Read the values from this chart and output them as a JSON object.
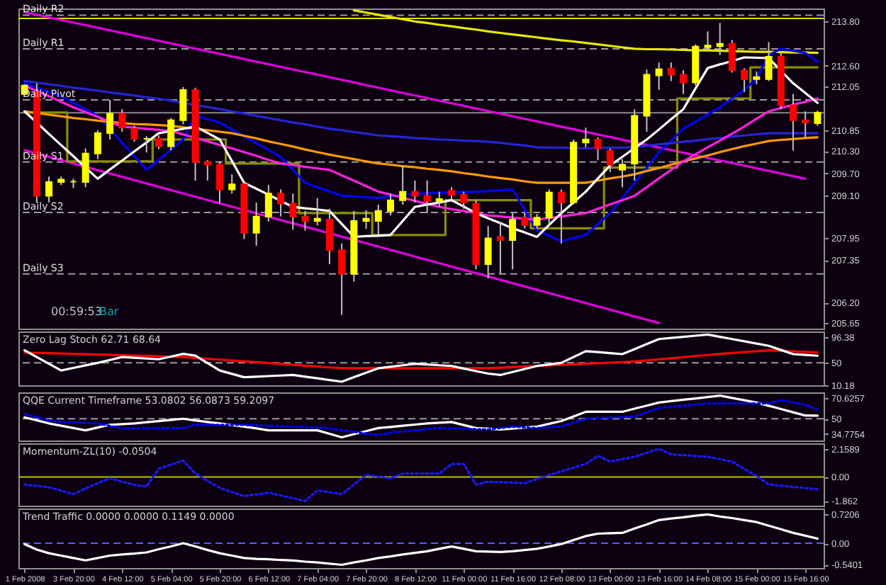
{
  "chart_data": [
    {
      "type": "candlestick",
      "tick_labels": "y",
      "categories": [
        "1 Feb 2008",
        null,
        null,
        null,
        "3 Feb 20:00",
        null,
        null,
        null,
        "4 Feb 12:00",
        null,
        null,
        null,
        "5 Feb 04:00",
        null,
        null,
        null,
        "5 Feb 20:00",
        null,
        null,
        null,
        "6 Feb 12:00",
        null,
        null,
        null,
        "7 Feb 04:00",
        null,
        null,
        null,
        "7 Feb 20:00",
        null,
        null,
        null,
        "8 Feb 12:00",
        null,
        null,
        null,
        "11 Feb 00:00",
        null,
        null,
        null,
        "11 Feb 16:00",
        null,
        null,
        null,
        "12 Feb 08:00",
        null,
        null,
        null,
        "13 Feb 00:00",
        null,
        null,
        null,
        "13 Feb 16:00",
        null,
        null,
        null,
        "14 Feb 08:00",
        null,
        null,
        null,
        "15 Feb 00:00",
        null,
        null,
        null,
        "15 Feb 16:00",
        null
      ],
      "ohlc": [
        [
          211.84,
          212.1,
          211.8,
          212.07
        ],
        [
          211.89,
          212.13,
          208.91,
          209.09
        ],
        [
          209.09,
          209.61,
          208.91,
          209.46
        ],
        [
          209.46,
          209.61,
          209.38,
          209.53
        ],
        [
          209.47,
          209.55,
          209.3,
          209.47
        ],
        [
          209.46,
          210.37,
          209.32,
          210.23
        ],
        [
          210.23,
          210.86,
          210.08,
          210.78
        ],
        [
          210.78,
          211.68,
          210.61,
          211.31
        ],
        [
          211.31,
          211.43,
          210.82,
          210.93
        ],
        [
          210.9,
          210.98,
          210.55,
          210.63
        ],
        [
          210.63,
          210.7,
          210.26,
          210.63
        ],
        [
          210.64,
          210.72,
          210.35,
          210.43
        ],
        [
          210.43,
          211.19,
          210.31,
          211.13
        ],
        [
          211.13,
          212.03,
          211.02,
          211.95
        ],
        [
          211.95,
          212.01,
          209.5,
          210.0
        ],
        [
          210.0,
          210.05,
          209.5,
          209.93
        ],
        [
          209.93,
          210.02,
          208.88,
          209.26
        ],
        [
          209.26,
          209.67,
          209.15,
          209.4
        ],
        [
          209.4,
          209.5,
          207.92,
          208.09
        ],
        [
          208.09,
          208.91,
          207.74,
          208.53
        ],
        [
          208.53,
          209.38,
          208.39,
          209.15
        ],
        [
          209.15,
          209.26,
          208.53,
          208.88
        ],
        [
          208.88,
          209.15,
          208.17,
          208.53
        ],
        [
          208.53,
          208.68,
          208.15,
          208.41
        ],
        [
          208.41,
          209.03,
          208.29,
          208.47
        ],
        [
          208.44,
          208.74,
          207.24,
          207.62
        ],
        [
          207.62,
          207.8,
          205.87,
          206.98
        ],
        [
          206.98,
          208.68,
          206.77,
          208.41
        ],
        [
          208.41,
          208.7,
          208.2,
          208.47
        ],
        [
          208.41,
          208.85,
          208.03,
          208.68
        ],
        [
          208.68,
          209.15,
          208.56,
          208.97
        ],
        [
          208.97,
          209.91,
          208.85,
          209.2
        ],
        [
          209.2,
          209.5,
          208.91,
          209.09
        ],
        [
          209.09,
          209.5,
          208.62,
          208.95
        ],
        [
          208.95,
          209.2,
          208.8,
          209.0
        ],
        [
          209.23,
          209.32,
          209.0,
          209.11
        ],
        [
          209.11,
          209.2,
          208.74,
          208.91
        ],
        [
          208.88,
          208.97,
          207.1,
          207.24
        ],
        [
          207.24,
          208.27,
          206.86,
          207.94
        ],
        [
          207.98,
          208.38,
          206.98,
          207.89
        ],
        [
          207.89,
          208.62,
          207.1,
          208.44
        ],
        [
          208.5,
          208.62,
          208.21,
          208.3
        ],
        [
          208.3,
          208.6,
          208.2,
          208.5
        ],
        [
          208.5,
          209.26,
          208.33,
          209.18
        ],
        [
          209.18,
          209.26,
          207.8,
          208.91
        ],
        [
          208.91,
          210.61,
          208.85,
          210.53
        ],
        [
          210.53,
          210.93,
          210.4,
          210.61
        ],
        [
          210.61,
          210.67,
          210.05,
          210.37
        ],
        [
          210.31,
          210.37,
          209.73,
          209.93
        ],
        [
          209.79,
          210.08,
          209.32,
          209.93
        ],
        [
          209.96,
          211.43,
          209.5,
          211.25
        ],
        [
          211.25,
          212.5,
          210.82,
          212.36
        ],
        [
          212.34,
          212.69,
          211.95,
          212.51
        ],
        [
          212.53,
          212.69,
          212.19,
          212.36
        ],
        [
          212.36,
          212.48,
          211.84,
          212.15
        ],
        [
          212.15,
          213.18,
          212.07,
          213.12
        ],
        [
          213.1,
          213.53,
          213.06,
          213.15
        ],
        [
          213.13,
          213.76,
          212.89,
          213.2
        ],
        [
          213.2,
          213.3,
          212.42,
          212.48
        ],
        [
          212.48,
          212.54,
          211.89,
          212.24
        ],
        [
          212.24,
          212.45,
          212.1,
          212.3
        ],
        [
          212.24,
          213.24,
          212.19,
          212.85
        ],
        [
          212.85,
          212.95,
          211.43,
          211.54
        ],
        [
          211.54,
          211.84,
          210.31,
          211.13
        ],
        [
          211.13,
          211.37,
          210.67,
          211.07
        ],
        [
          211.05,
          211.39,
          210.98,
          211.33
        ]
      ],
      "series": [
        {
          "type": "line",
          "color": "#e000e0",
          "x": [
            "1 Feb 2008",
            "15 Feb 16:00"
          ],
          "values": [
            214.05,
            209.55
          ]
        },
        {
          "type": "line",
          "color": "#e000e0",
          "x": [
            "1 Feb 2008",
            "13 Feb 16:00"
          ],
          "values": [
            210.32,
            205.65
          ]
        },
        {
          "type": "line",
          "color": "#e8e800",
          "values": [
            null,
            null,
            null,
            null,
            null,
            null,
            null,
            null,
            null,
            null,
            null,
            null,
            null,
            null,
            null,
            null,
            null,
            null,
            null,
            null,
            null,
            null,
            null,
            null,
            null,
            null,
            null,
            214.1,
            214.04,
            213.98,
            213.92,
            213.86,
            213.8,
            213.76,
            213.71,
            213.67,
            213.62,
            213.58,
            213.53,
            213.49,
            213.45,
            213.41,
            213.37,
            213.33,
            213.29,
            213.26,
            213.22,
            213.18,
            213.14,
            213.1,
            213.06,
            213.05,
            213.05,
            213.04,
            213.03,
            213.02,
            213.02,
            213.01,
            213.0,
            212.99,
            212.98,
            212.98,
            212.97,
            212.96,
            212.96,
            212.95
          ]
        },
        {
          "type": "step",
          "color": "#8b8b00",
          "values": [
            211.34,
            211.34,
            211.34,
            211.34,
            210.02,
            210.02,
            210.02,
            210.02,
            210.02,
            210.02,
            210.02,
            210.61,
            210.61,
            210.61,
            210.61,
            210.61,
            210.61,
            209.96,
            209.96,
            209.96,
            209.96,
            209.96,
            209.96,
            208.62,
            208.62,
            208.62,
            208.62,
            208.62,
            208.62,
            208.03,
            208.03,
            208.03,
            208.03,
            208.03,
            208.03,
            208.97,
            208.97,
            208.97,
            208.97,
            208.97,
            208.97,
            208.97,
            208.21,
            208.21,
            208.21,
            208.21,
            208.21,
            208.21,
            209.85,
            209.85,
            209.85,
            209.85,
            209.85,
            209.85,
            211.72,
            211.72,
            211.72,
            211.72,
            211.72,
            211.72,
            212.56,
            212.56,
            212.56,
            212.56,
            212.56,
            212.56
          ]
        },
        {
          "type": "line",
          "color": "#0000ff",
          "values": [
            212.13,
            212.01,
            211.9,
            211.78,
            211.6,
            211.43,
            211.25,
            210.89,
            210.52,
            210.16,
            209.79,
            210.06,
            210.34,
            210.61,
            211.25,
            211.16,
            211.07,
            210.88,
            210.7,
            210.51,
            210.33,
            210.14,
            209.79,
            209.44,
            209.32,
            209.21,
            209.09,
            209.07,
            209.05,
            209.03,
            209.07,
            209.11,
            209.15,
            209.16,
            209.17,
            209.18,
            209.19,
            209.2,
            209.22,
            209.24,
            209.26,
            208.71,
            208.15,
            208.01,
            207.86,
            207.95,
            208.03,
            208.33,
            208.62,
            209.03,
            209.44,
            209.85,
            210.26,
            210.58,
            210.9,
            211.09,
            211.29,
            211.48,
            211.72,
            211.95,
            212.25,
            212.89,
            213.06,
            213.01,
            212.95,
            212.71
          ]
        },
        {
          "type": "line",
          "color": "#ff9900",
          "values": [
            211.37,
            211.33,
            211.28,
            211.24,
            211.19,
            211.16,
            211.12,
            211.09,
            211.05,
            211.03,
            211.02,
            211.0,
            210.98,
            210.94,
            210.9,
            210.86,
            210.82,
            210.78,
            210.71,
            210.64,
            210.56,
            210.49,
            210.42,
            210.34,
            210.27,
            210.2,
            210.14,
            210.08,
            210.02,
            209.96,
            209.93,
            209.89,
            209.86,
            209.82,
            209.79,
            209.75,
            209.7,
            209.66,
            209.61,
            209.57,
            209.53,
            209.48,
            209.44,
            209.44,
            209.44,
            209.44,
            209.44,
            209.5,
            209.56,
            209.61,
            209.67,
            209.76,
            209.84,
            209.93,
            210.02,
            210.1,
            210.18,
            210.27,
            210.35,
            210.43,
            210.5,
            210.57,
            210.6,
            210.62,
            210.65,
            210.67
          ]
        },
        {
          "type": "line",
          "color": "#2424d8",
          "values": [
            212.19,
            212.15,
            212.1,
            212.06,
            212.01,
            211.97,
            211.93,
            211.88,
            211.84,
            211.8,
            211.75,
            211.71,
            211.66,
            211.6,
            211.54,
            211.49,
            211.43,
            211.37,
            211.31,
            211.25,
            211.19,
            211.13,
            211.07,
            211.02,
            210.96,
            210.9,
            210.86,
            210.81,
            210.77,
            210.72,
            210.7,
            210.68,
            210.65,
            210.63,
            210.61,
            210.6,
            210.58,
            210.57,
            210.55,
            210.52,
            210.48,
            210.45,
            210.4,
            210.39,
            210.39,
            210.38,
            210.37,
            210.38,
            210.39,
            210.39,
            210.4,
            210.44,
            210.48,
            210.51,
            210.55,
            210.58,
            210.62,
            210.65,
            210.69,
            210.72,
            210.75,
            210.78,
            210.78,
            210.78,
            210.78,
            210.78
          ]
        },
        {
          "type": "line",
          "color": "#ff20e0",
          "values": [
            212.07,
            211.92,
            211.78,
            211.63,
            211.48,
            211.35,
            211.22,
            211.09,
            210.96,
            210.93,
            210.9,
            210.87,
            210.84,
            210.75,
            210.65,
            210.56,
            210.46,
            210.37,
            210.27,
            210.17,
            210.06,
            209.96,
            209.92,
            209.87,
            209.83,
            209.79,
            209.64,
            209.5,
            209.35,
            209.2,
            209.12,
            209.04,
            208.95,
            208.87,
            208.79,
            208.73,
            208.68,
            208.62,
            208.56,
            208.53,
            208.5,
            208.47,
            208.44,
            208.49,
            208.53,
            208.58,
            208.62,
            208.74,
            208.86,
            208.97,
            209.09,
            209.32,
            209.56,
            209.79,
            210.02,
            210.21,
            210.4,
            210.58,
            210.77,
            210.96,
            211.17,
            211.37,
            211.46,
            211.55,
            211.63,
            211.72
          ]
        },
        {
          "type": "line",
          "color": "#ffffff",
          "values": [
            211.37,
            211.07,
            210.76,
            210.46,
            210.16,
            209.85,
            209.55,
            209.8,
            210.04,
            210.29,
            210.53,
            210.78,
            210.84,
            210.9,
            210.96,
            210.79,
            210.61,
            210.03,
            209.44,
            209.28,
            209.12,
            208.95,
            208.79,
            208.75,
            208.72,
            208.68,
            208.33,
            207.98,
            208.0,
            208.01,
            208.03,
            208.41,
            208.79,
            208.85,
            208.91,
            208.97,
            208.8,
            208.62,
            208.48,
            208.35,
            208.21,
            208.1,
            207.98,
            208.3,
            208.62,
            208.91,
            209.2,
            209.56,
            209.91,
            210.14,
            210.38,
            210.61,
            210.88,
            211.16,
            211.43,
            211.99,
            212.54,
            212.64,
            212.73,
            212.83,
            212.82,
            212.81,
            212.47,
            212.13,
            211.87,
            211.6
          ]
        }
      ],
      "ylim": [
        205.5,
        214.15
      ],
      "yticks": [
        {
          "value": 213.8,
          "label": "213.80"
        },
        {
          "value": 212.6,
          "label": "212.60"
        },
        {
          "value": 212.05,
          "label": "212.05"
        },
        {
          "value": 210.85,
          "label": "210.85"
        },
        {
          "value": 210.3,
          "label": "210.30"
        },
        {
          "value": 209.7,
          "label": "209.70"
        },
        {
          "value": 209.1,
          "label": "209.10"
        },
        {
          "value": 207.95,
          "label": "207.95"
        },
        {
          "value": 207.35,
          "label": "207.35"
        },
        {
          "value": 206.2,
          "label": "206.20"
        },
        {
          "value": 205.65,
          "label": "205.65"
        }
      ],
      "ref_lines": [
        {
          "axis": "y",
          "value": 213.97,
          "label": "Daily R2",
          "color": "#9a9a9a",
          "line_style": "dashed"
        },
        {
          "axis": "y",
          "value": 213.88,
          "label": null,
          "color": "#e0e000",
          "line_style": "solid"
        },
        {
          "axis": "y",
          "value": 213.06,
          "label": "Daily R1",
          "color": "#9a9a9a",
          "line_style": "dashed"
        },
        {
          "axis": "y",
          "value": 211.68,
          "label": "Daily Pivot",
          "color": "#9a9a9a",
          "line_style": "dashed"
        },
        {
          "axis": "y",
          "value": 211.33,
          "label": null,
          "color": "#8a8a8a",
          "line_style": "solid"
        },
        {
          "axis": "y",
          "value": 210.0,
          "label": "Daily S1",
          "color": "#9a9a9a",
          "line_style": "dashed"
        },
        {
          "axis": "y",
          "value": 208.64,
          "label": "Daily S2",
          "color": "#9a9a9a",
          "line_style": "dashed"
        },
        {
          "axis": "y",
          "value": 206.98,
          "label": "Daily S3",
          "color": "#9a9a9a",
          "line_style": "dashed"
        }
      ],
      "annotations": [
        "00:59:53",
        "Bar"
      ]
    },
    {
      "type": "line",
      "tick_labels": "y",
      "title": "Zero Lag Stoch 62.71 68.64",
      "categories": [
        "1 Feb 2008",
        null,
        null,
        null,
        "3 Feb 20:00",
        null,
        null,
        null,
        "4 Feb 12:00",
        null,
        null,
        null,
        "5 Feb 04:00",
        null,
        null,
        null,
        "5 Feb 20:00",
        null,
        null,
        null,
        "6 Feb 12:00",
        null,
        null,
        null,
        "7 Feb 04:00",
        null,
        null,
        null,
        "7 Feb 20:00",
        null,
        null,
        null,
        "8 Feb 12:00",
        null,
        null,
        null,
        "11 Feb 00:00",
        null,
        null,
        null,
        "11 Feb 16:00",
        null,
        null,
        null,
        "12 Feb 08:00",
        null,
        null,
        null,
        "13 Feb 00:00",
        null,
        null,
        null,
        "13 Feb 16:00",
        null,
        null,
        null,
        "14 Feb 08:00",
        null,
        null,
        null,
        "15 Feb 00:00",
        null,
        null,
        null,
        "15 Feb 16:00",
        null
      ],
      "series": [
        {
          "color": "#ff0000",
          "values": [
            68.4,
            67.8,
            67.2,
            66.6,
            65.9,
            65.3,
            64.7,
            64.1,
            63.5,
            62.9,
            62.2,
            61.6,
            61.0,
            60.4,
            58.9,
            57.3,
            55.8,
            54.2,
            52.7,
            51.2,
            49.6,
            48.1,
            46.6,
            45.0,
            43.5,
            41.9,
            40.4,
            40.4,
            40.4,
            40.4,
            40.4,
            40.4,
            40.4,
            40.4,
            40.4,
            40.4,
            40.4,
            40.4,
            40.4,
            41.4,
            42.4,
            43.4,
            44.4,
            45.4,
            46.4,
            47.4,
            48.4,
            49.4,
            50.4,
            51.4,
            52.4,
            54.3,
            56.3,
            58.2,
            60.1,
            62.1,
            64.0,
            66.0,
            67.6,
            69.2,
            70.8,
            72.4,
            71.4,
            70.5,
            69.5,
            68.64
          ]
        },
        {
          "color": "#ffffff",
          "values": [
            72.4,
            60.4,
            48.4,
            36.4,
            40.9,
            45.5,
            50.0,
            55.2,
            60.4,
            59.1,
            57.7,
            56.4,
            61.2,
            66.0,
            62.8,
            49.6,
            36.4,
            30.4,
            24.4,
            25.4,
            26.4,
            27.4,
            28.4,
            25.4,
            22.4,
            19.4,
            16.4,
            24.4,
            32.4,
            40.4,
            43.1,
            45.7,
            48.4,
            47.1,
            45.7,
            44.4,
            39.9,
            35.3,
            30.8,
            28.4,
            33.7,
            39.1,
            44.4,
            47.2,
            50.0,
            60.4,
            70.8,
            69.1,
            67.3,
            65.6,
            74.5,
            83.5,
            92.4,
            94.4,
            96.4,
            98.4,
            100.4,
            96.4,
            92.4,
            88.4,
            84.4,
            80.4,
            73.0,
            65.6,
            64.2,
            62.71
          ]
        }
      ],
      "ylim": [
        10,
        106
      ],
      "yticks": [
        96.38,
        50,
        10.18
      ],
      "ref_lines": [
        {
          "axis": "y",
          "value": 50,
          "label": null,
          "color": "#9a9a9a",
          "line_style": "dashed"
        }
      ]
    },
    {
      "type": "line",
      "tick_labels": "y",
      "title": "QQE Current Timeframe 53.0802 56.0873 59.2097",
      "categories": [
        "1 Feb 2008",
        null,
        null,
        null,
        "3 Feb 20:00",
        null,
        null,
        null,
        "4 Feb 12:00",
        null,
        null,
        null,
        "5 Feb 04:00",
        null,
        null,
        null,
        "5 Feb 20:00",
        null,
        null,
        null,
        "6 Feb 12:00",
        null,
        null,
        null,
        "7 Feb 04:00",
        null,
        null,
        null,
        "7 Feb 20:00",
        null,
        null,
        null,
        "8 Feb 12:00",
        null,
        null,
        null,
        "11 Feb 00:00",
        null,
        null,
        null,
        "11 Feb 16:00",
        null,
        null,
        null,
        "12 Feb 08:00",
        null,
        null,
        null,
        "13 Feb 00:00",
        null,
        null,
        null,
        "13 Feb 16:00",
        null,
        null,
        null,
        "14 Feb 08:00",
        null,
        null,
        null,
        "15 Feb 00:00",
        null,
        null,
        null,
        "15 Feb 16:00",
        null
      ],
      "series": [
        {
          "color": "#ffffff",
          "values": [
            51.4,
            48.4,
            45.4,
            43.1,
            40.8,
            38.5,
            41.3,
            44.0,
            44.7,
            45.4,
            46.6,
            47.7,
            48.9,
            50.0,
            48.4,
            46.8,
            45.3,
            43.7,
            42.2,
            40.4,
            38.5,
            38.5,
            38.5,
            38.5,
            38.5,
            35.1,
            31.6,
            34.7,
            37.7,
            40.8,
            41.9,
            43.1,
            44.2,
            45.4,
            46.1,
            46.8,
            43.8,
            40.8,
            40.1,
            39.4,
            40.3,
            41.3,
            42.2,
            45.0,
            47.7,
            52.3,
            56.9,
            56.9,
            56.9,
            56.9,
            60.0,
            63.0,
            66.1,
            67.5,
            68.9,
            70.2,
            71.6,
            73.0,
            70.7,
            68.4,
            66.1,
            62.9,
            59.7,
            56.4,
            53.2,
            53.08
          ]
        },
        {
          "color": "#0000ff",
          "line_style": "dotted",
          "values": [
            54.6,
            51.5,
            48.4,
            46.8,
            46.3,
            45.9,
            45.4,
            42.9,
            40.3,
            40.4,
            40.5,
            40.6,
            40.7,
            40.8,
            44.0,
            44.0,
            44.0,
            44.0,
            44.0,
            43.5,
            43.1,
            42.6,
            42.1,
            41.6,
            41.1,
            40.6,
            38.5,
            37.0,
            35.4,
            33.9,
            36.2,
            37.4,
            38.5,
            39.7,
            40.8,
            40.4,
            40.1,
            39.7,
            39.4,
            40.8,
            42.2,
            41.5,
            40.8,
            41.5,
            42.2,
            46.1,
            50.0,
            50.6,
            51.1,
            51.7,
            52.3,
            56.5,
            60.6,
            61.8,
            62.9,
            64.1,
            65.2,
            65.2,
            65.2,
            65.2,
            65.2,
            65.2,
            68.4,
            66.1,
            63.8,
            59.21
          ]
        }
      ],
      "ylim": [
        28.4,
        76.2
      ],
      "yticks": [
        70.6257,
        50,
        34.7754
      ],
      "ref_lines": [
        {
          "axis": "y",
          "value": 50,
          "label": null,
          "color": "#9a9a9a",
          "line_style": "dashed"
        }
      ]
    },
    {
      "type": "line",
      "tick_labels": "y",
      "title": "Momentum-ZL(10) -0.0504",
      "categories": [
        "1 Feb 2008",
        null,
        null,
        null,
        "3 Feb 20:00",
        null,
        null,
        null,
        "4 Feb 12:00",
        null,
        null,
        null,
        "5 Feb 04:00",
        null,
        null,
        null,
        "5 Feb 20:00",
        null,
        null,
        null,
        "6 Feb 12:00",
        null,
        null,
        null,
        "7 Feb 04:00",
        null,
        null,
        null,
        "7 Feb 20:00",
        null,
        null,
        null,
        "8 Feb 12:00",
        null,
        null,
        null,
        "11 Feb 00:00",
        null,
        null,
        null,
        "11 Feb 16:00",
        null,
        null,
        null,
        "12 Feb 08:00",
        null,
        null,
        null,
        "13 Feb 00:00",
        null,
        null,
        null,
        "13 Feb 16:00",
        null,
        null,
        null,
        "14 Feb 08:00",
        null,
        null,
        null,
        "15 Feb 00:00",
        null,
        null,
        null,
        "15 Feb 16:00",
        null
      ],
      "series": [
        {
          "color": "#1a1aff",
          "line_style": "dotted",
          "values": [
            -0.59,
            -0.69,
            -0.8,
            -1.06,
            -1.33,
            -0.89,
            -0.48,
            -0.11,
            -0.37,
            -0.61,
            -0.74,
            0.63,
            0.95,
            1.26,
            0.26,
            -0.3,
            -0.85,
            -1.17,
            -1.48,
            -1.35,
            -1.22,
            -1.43,
            -1.64,
            -1.86,
            -1.04,
            -1.19,
            -1.33,
            -0.59,
            0.15,
            0.02,
            -0.11,
            0.26,
            0.26,
            0.26,
            0.26,
            1.0,
            1.0,
            -0.59,
            -0.37,
            -0.41,
            -0.44,
            -0.48,
            -0.17,
            0.15,
            0.43,
            0.72,
            1.0,
            1.63,
            1.18,
            1.37,
            1.55,
            1.86,
            2.16,
            1.74,
            1.68,
            1.61,
            1.55,
            1.37,
            1.18,
            0.62,
            0.07,
            -0.59,
            -0.67,
            -0.77,
            -0.86,
            -0.96
          ]
        }
      ],
      "ylim": [
        -2.22,
        2.59
      ],
      "yticks": [
        2.1589,
        {
          "value": 0,
          "label": "0.00"
        },
        -1.862
      ],
      "ref_lines": [
        {
          "axis": "y",
          "value": 0,
          "label": null,
          "color": "#c0c000",
          "line_style": "solid"
        }
      ]
    },
    {
      "type": "line",
      "title": "Trend Traffic 0.0000 0.0000 0.1149 0.0000",
      "categories": [
        "1 Feb 2008",
        null,
        null,
        null,
        "3 Feb 20:00",
        null,
        null,
        null,
        "4 Feb 12:00",
        null,
        null,
        null,
        "5 Feb 04:00",
        null,
        null,
        null,
        "5 Feb 20:00",
        null,
        null,
        null,
        "6 Feb 12:00",
        null,
        null,
        null,
        "7 Feb 04:00",
        null,
        null,
        null,
        "7 Feb 20:00",
        null,
        null,
        null,
        "8 Feb 12:00",
        null,
        null,
        null,
        "11 Feb 00:00",
        null,
        null,
        null,
        "11 Feb 16:00",
        null,
        null,
        null,
        "12 Feb 08:00",
        null,
        null,
        null,
        "13 Feb 00:00",
        null,
        null,
        null,
        "13 Feb 16:00",
        null,
        null,
        null,
        "14 Feb 08:00",
        null,
        null,
        null,
        "15 Feb 00:00",
        null,
        null,
        null,
        "15 Feb 16:00",
        null
      ],
      "series": [
        {
          "color": "#ffffff",
          "values": [
            -0.02,
            -0.16,
            -0.25,
            -0.31,
            -0.37,
            -0.43,
            -0.37,
            -0.31,
            -0.28,
            -0.26,
            -0.23,
            -0.15,
            -0.08,
            0.0,
            -0.08,
            -0.17,
            -0.25,
            -0.31,
            -0.37,
            -0.39,
            -0.4,
            -0.42,
            -0.43,
            -0.46,
            -0.48,
            -0.51,
            -0.54,
            -0.48,
            -0.43,
            -0.37,
            -0.33,
            -0.28,
            -0.24,
            -0.2,
            -0.14,
            -0.08,
            -0.14,
            -0.2,
            -0.21,
            -0.22,
            -0.2,
            -0.17,
            -0.14,
            -0.08,
            -0.02,
            0.08,
            0.18,
            0.24,
            0.25,
            0.26,
            0.37,
            0.47,
            0.58,
            0.62,
            0.65,
            0.69,
            0.7206,
            0.67,
            0.63,
            0.58,
            0.53,
            0.44,
            0.35,
            0.26,
            0.19,
            0.1149
          ]
        }
      ],
      "ylim": [
        -0.62,
        0.87
      ],
      "yticks": [
        0.7206,
        {
          "value": 0,
          "label": "0.00"
        },
        -0.5401
      ],
      "ref_lines": [
        {
          "axis": "y",
          "value": 0,
          "label": null,
          "color": "#5a5aff",
          "line_style": "dashed"
        }
      ]
    }
  ]
}
